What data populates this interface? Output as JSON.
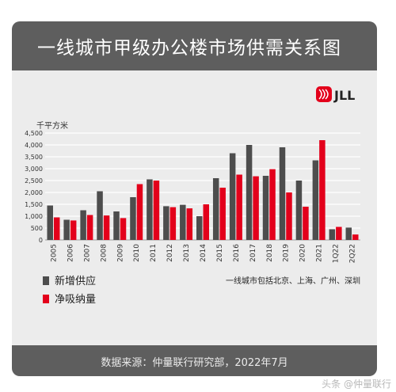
{
  "title": "一线城市甲级办公楼市场供需关系图",
  "brand": "JLL",
  "unit_label": "千平方米",
  "legend": {
    "supply": "新增供应",
    "absorption": "净吸纳量",
    "note": "一线城市包括北京、上海、广州、深圳"
  },
  "footer": "数据来源：仲量联行研究部，2022年7月",
  "watermark": "头条 @仲量联行",
  "colors": {
    "supply": "#4d4d4d",
    "absorption": "#e3001b",
    "brand_red": "#e3001b"
  },
  "chart_data": {
    "type": "bar",
    "categories": [
      "2005",
      "2006",
      "2007",
      "2008",
      "2009",
      "2010",
      "2011",
      "2012",
      "2013",
      "2014",
      "2015",
      "2016",
      "2017",
      "2018",
      "2019",
      "2020",
      "2021",
      "1Q22",
      "2Q22"
    ],
    "series": [
      {
        "name": "新增供应",
        "values": [
          1450,
          850,
          1250,
          2050,
          1200,
          1800,
          2550,
          1420,
          1480,
          1000,
          2600,
          3650,
          4000,
          2700,
          3900,
          2500,
          3350,
          450,
          520
        ]
      },
      {
        "name": "净吸纳量",
        "values": [
          950,
          820,
          1050,
          1030,
          920,
          2350,
          2500,
          1380,
          1330,
          1500,
          2200,
          2750,
          2680,
          2980,
          2000,
          1400,
          4200,
          550,
          230
        ]
      }
    ],
    "y_ticks": [
      "0",
      "500",
      "1,000",
      "1,500",
      "2,000",
      "2,500",
      "3,000",
      "3,500",
      "4,000",
      "4,500"
    ],
    "ylim": [
      0,
      4500
    ],
    "ylabel": "千平方米",
    "grid": true,
    "legend_position": "bottom-left"
  }
}
